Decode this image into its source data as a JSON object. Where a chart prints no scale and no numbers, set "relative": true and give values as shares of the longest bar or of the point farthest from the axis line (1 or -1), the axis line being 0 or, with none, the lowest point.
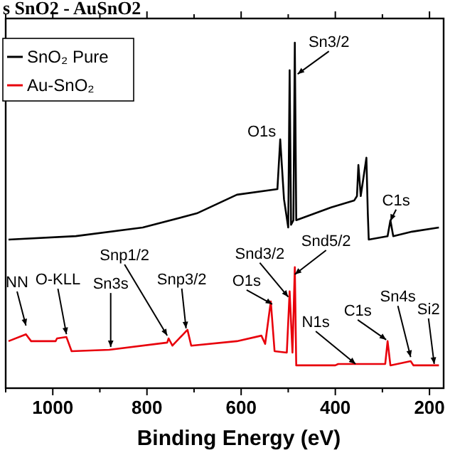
{
  "chart_data": {
    "type": "line",
    "title": "s SnO2 - AuSnO2",
    "xlabel": "Binding Energy (eV)",
    "relative": true,
    "xlim": [
      1100,
      170
    ],
    "xticks": [
      {
        "value": 1100,
        "label": null
      },
      1000,
      {
        "value": 900,
        "label": null
      },
      800,
      {
        "value": 700,
        "label": null
      },
      600,
      {
        "value": 500,
        "label": null
      },
      400,
      {
        "value": 300,
        "label": null
      },
      200
    ],
    "legend": "top left",
    "grid": false,
    "marker": "none",
    "line_style": "solid",
    "series": [
      {
        "name": "SnO₂ Pure",
        "color": "#000000",
        "x": [
          1094,
          951,
          809,
          694,
          609,
          523,
          517,
          509,
          500,
          497,
          494,
          489,
          486,
          483,
          409,
          360,
          354,
          351,
          346,
          334,
          331,
          329,
          289,
          283,
          277,
          237,
          180
        ],
        "values": [
          0.43,
          0.44,
          0.465,
          0.506,
          0.56,
          0.576,
          0.72,
          0.547,
          0.465,
          0.92,
          0.473,
          0.486,
          1.0,
          0.486,
          0.523,
          0.543,
          0.556,
          0.646,
          0.556,
          0.667,
          0.506,
          0.43,
          0.44,
          0.486,
          0.44,
          0.453,
          0.465
        ]
      },
      {
        "name": "Au-SnO₂",
        "color": "#e8000b",
        "x": [
          1094,
          1057,
          1046,
          994,
          991,
          971,
          960,
          880,
          757,
          754,
          746,
          714,
          706,
          609,
          557,
          549,
          537,
          529,
          503,
          497,
          491,
          486,
          483,
          400,
          394,
          294,
          289,
          283,
          240,
          234,
          180
        ],
        "values": [
          0.136,
          0.156,
          0.136,
          0.136,
          0.144,
          0.148,
          0.107,
          0.111,
          0.132,
          0.144,
          0.123,
          0.169,
          0.123,
          0.136,
          0.152,
          0.128,
          0.251,
          0.107,
          0.103,
          0.28,
          0.103,
          0.35,
          0.066,
          0.066,
          0.07,
          0.07,
          0.136,
          0.066,
          0.078,
          0.066,
          0.066
        ]
      }
    ],
    "annotations": [
      {
        "text": "O1s",
        "x": 517,
        "y": 0.72
      },
      {
        "text": "Sn3/2",
        "x": 480,
        "y": 0.905
      },
      {
        "text": "C1s",
        "x": 283,
        "y": 0.48
      },
      {
        "text": "NN",
        "x": 1057,
        "y": 0.177
      },
      {
        "text": "O-KLL",
        "x": 971,
        "y": 0.152
      },
      {
        "text": "Sn3s",
        "x": 877,
        "y": 0.115
      },
      {
        "text": "Snp1/2",
        "x": 757,
        "y": 0.148
      },
      {
        "text": "Snp3/2",
        "x": 717,
        "y": 0.169
      },
      {
        "text": "O1s",
        "x": 534,
        "y": 0.239
      },
      {
        "text": "Snd3/2",
        "x": 500,
        "y": 0.26
      },
      {
        "text": "Snd5/2",
        "x": 486,
        "y": 0.325
      },
      {
        "text": "N1s",
        "x": 357,
        "y": 0.066
      },
      {
        "text": "C1s",
        "x": 292,
        "y": 0.136
      },
      {
        "text": "Sn4s",
        "x": 240,
        "y": 0.086
      },
      {
        "text": "Si2",
        "x": 190,
        "y": 0.066
      }
    ]
  }
}
